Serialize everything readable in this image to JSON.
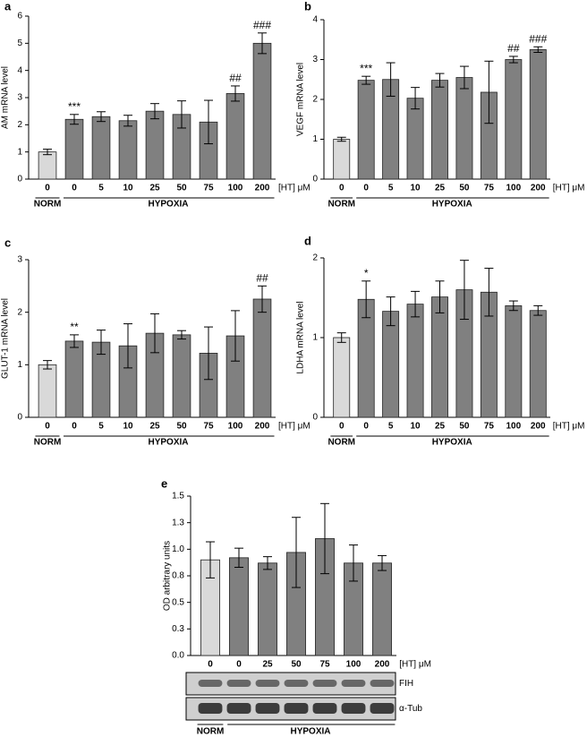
{
  "chart_data": [
    {
      "type": "bar",
      "panel": "a",
      "y_label": "AM mRNA level",
      "categories": [
        "0",
        "0",
        "5",
        "10",
        "25",
        "50",
        "75",
        "100",
        "200"
      ],
      "values": [
        1.0,
        2.2,
        2.3,
        2.15,
        2.5,
        2.38,
        2.1,
        3.15,
        5.0
      ],
      "errors": [
        0.1,
        0.18,
        0.18,
        0.2,
        0.28,
        0.5,
        0.8,
        0.28,
        0.38
      ],
      "significance": [
        null,
        "***",
        null,
        null,
        null,
        null,
        null,
        "##",
        "###"
      ],
      "colors": [
        "#d9d9d9",
        "#808080",
        "#808080",
        "#808080",
        "#808080",
        "#808080",
        "#808080",
        "#808080",
        "#808080"
      ],
      "ylim": [
        0,
        6
      ],
      "yticks": [
        0,
        1,
        2,
        3,
        4,
        5,
        6
      ],
      "group_labels": [
        "NORM",
        "HYPOXIA"
      ],
      "unit_label": "[HT] μM"
    },
    {
      "type": "bar",
      "panel": "b",
      "y_label": "VEGF mRNA level",
      "categories": [
        "0",
        "0",
        "5",
        "10",
        "25",
        "50",
        "75",
        "100",
        "200"
      ],
      "values": [
        1.0,
        2.48,
        2.5,
        2.03,
        2.48,
        2.55,
        2.18,
        3.0,
        3.25
      ],
      "errors": [
        0.05,
        0.1,
        0.42,
        0.27,
        0.17,
        0.28,
        0.78,
        0.08,
        0.07
      ],
      "significance": [
        null,
        "***",
        null,
        null,
        null,
        null,
        null,
        "##",
        "###"
      ],
      "colors": [
        "#d9d9d9",
        "#808080",
        "#808080",
        "#808080",
        "#808080",
        "#808080",
        "#808080",
        "#808080",
        "#808080"
      ],
      "ylim": [
        0,
        4
      ],
      "yticks": [
        0,
        1,
        2,
        3,
        4
      ],
      "group_labels": [
        "NORM",
        "HYPOXIA"
      ],
      "unit_label": "[HT] μM"
    },
    {
      "type": "bar",
      "panel": "c",
      "y_label": "GLUT-1 mRNA level",
      "categories": [
        "0",
        "0",
        "5",
        "10",
        "25",
        "50",
        "75",
        "100",
        "200"
      ],
      "values": [
        1.0,
        1.45,
        1.43,
        1.36,
        1.6,
        1.57,
        1.22,
        1.55,
        2.25
      ],
      "errors": [
        0.08,
        0.12,
        0.23,
        0.42,
        0.37,
        0.08,
        0.5,
        0.48,
        0.25
      ],
      "significance": [
        null,
        "**",
        null,
        null,
        null,
        null,
        null,
        null,
        "##"
      ],
      "colors": [
        "#d9d9d9",
        "#808080",
        "#808080",
        "#808080",
        "#808080",
        "#808080",
        "#808080",
        "#808080",
        "#808080"
      ],
      "ylim": [
        0,
        3
      ],
      "yticks": [
        0,
        1,
        2,
        3
      ],
      "group_labels": [
        "NORM",
        "HYPOXIA"
      ],
      "unit_label": "[HT] μM"
    },
    {
      "type": "bar",
      "panel": "d",
      "y_label": "LDHA mRNA level",
      "categories": [
        "0",
        "0",
        "5",
        "10",
        "25",
        "50",
        "75",
        "100",
        "200"
      ],
      "values": [
        1.0,
        1.48,
        1.33,
        1.42,
        1.51,
        1.6,
        1.57,
        1.4,
        1.34
      ],
      "errors": [
        0.06,
        0.23,
        0.18,
        0.16,
        0.2,
        0.37,
        0.3,
        0.06,
        0.06
      ],
      "significance": [
        null,
        "*",
        null,
        null,
        null,
        null,
        null,
        null,
        null
      ],
      "colors": [
        "#d9d9d9",
        "#808080",
        "#808080",
        "#808080",
        "#808080",
        "#808080",
        "#808080",
        "#808080",
        "#808080"
      ],
      "ylim": [
        0,
        2
      ],
      "yticks": [
        0,
        1,
        2
      ],
      "group_labels": [
        "NORM",
        "HYPOXIA"
      ],
      "unit_label": "[HT] μM"
    },
    {
      "type": "bar",
      "panel": "e",
      "y_label": "OD arbitrary units",
      "categories": [
        "0",
        "0",
        "25",
        "50",
        "75",
        "100",
        "200"
      ],
      "values": [
        0.9,
        0.92,
        0.87,
        0.97,
        1.1,
        0.87,
        0.87
      ],
      "errors": [
        0.17,
        0.09,
        0.06,
        0.33,
        0.33,
        0.17,
        0.07
      ],
      "colors": [
        "#d9d9d9",
        "#808080",
        "#808080",
        "#808080",
        "#808080",
        "#808080",
        "#808080"
      ],
      "ylim": [
        0,
        1.5
      ],
      "yticks": [
        {
          "value": 0,
          "label": "0.0"
        },
        {
          "value": 0.25,
          "label": "0.3"
        },
        0.5,
        {
          "value": 0.75,
          "label": "0.8"
        },
        {
          "value": 1.0,
          "label": "1.0"
        },
        {
          "value": 1.25,
          "label": "1.3"
        },
        1.5
      ],
      "group_labels": [
        "NORM",
        "HYPOXIA"
      ],
      "unit_label": "[HT] μM",
      "blot_labels": [
        "FIH",
        "α-Tub"
      ]
    }
  ]
}
